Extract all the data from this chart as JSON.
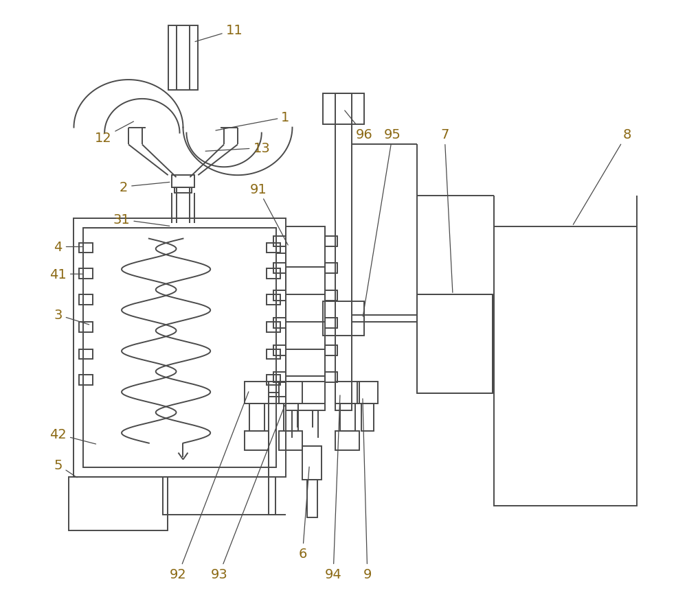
{
  "bg_color": "#ffffff",
  "line_color": "#4a4a4a",
  "label_color": "#8B6914",
  "fig_width": 10.0,
  "fig_height": 8.87
}
